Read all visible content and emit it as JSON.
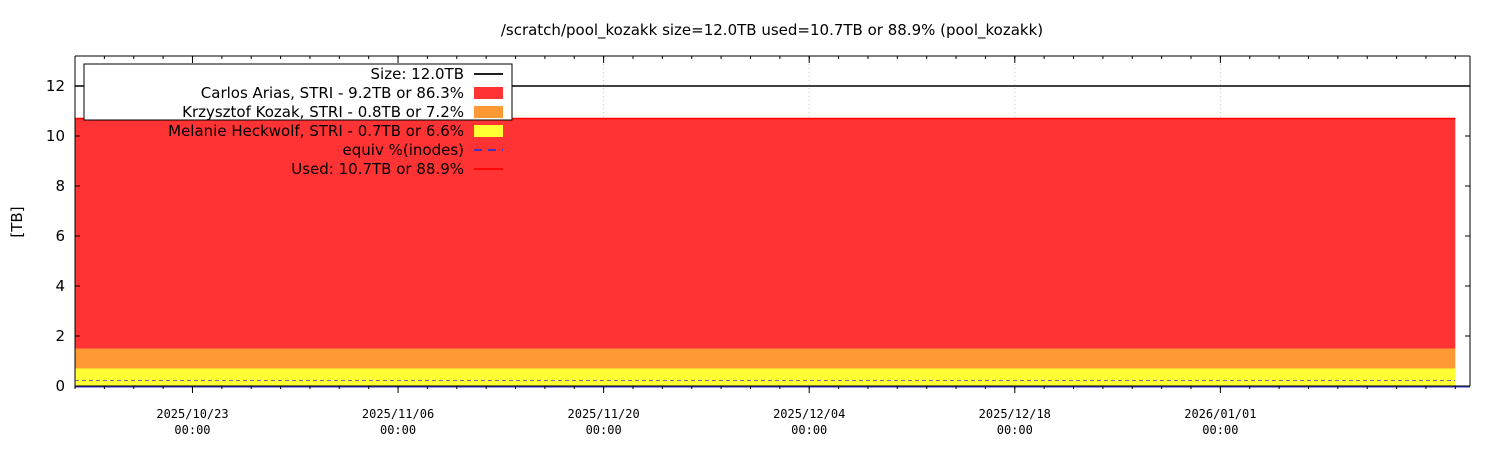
{
  "chart_data": {
    "type": "area",
    "title": "/scratch/pool_kozakk size=12.0TB used=10.7TB or 88.9% (pool_kozakk)",
    "ylabel": "[TB]",
    "xlabel": "",
    "ylim": [
      0,
      13.2
    ],
    "yticks": [
      "0",
      "2",
      "4",
      "6",
      "8",
      "10",
      "12"
    ],
    "x_range": [
      "2025-10-15",
      "2026-01-18"
    ],
    "data_end": "2026-01-17",
    "x_ticks": [
      {
        "date": "2025-10-23",
        "label1": "2025/10/23",
        "label2": "00:00"
      },
      {
        "date": "2025-11-06",
        "label1": "2025/11/06",
        "label2": "00:00"
      },
      {
        "date": "2025-11-20",
        "label1": "2025/11/20",
        "label2": "00:00"
      },
      {
        "date": "2025-12-04",
        "label1": "2025/12/04",
        "label2": "00:00"
      },
      {
        "date": "2025-12-18",
        "label1": "2025/12/18",
        "label2": "00:00"
      },
      {
        "date": "2026-01-01",
        "label1": "2026/01/01",
        "label2": "00:00"
      }
    ],
    "grid": true,
    "legend_position": "top-left",
    "size_line": {
      "name": "Size: 12.0TB",
      "value": 12.0,
      "color": "#000000"
    },
    "stacked_series": [
      {
        "name": "Melanie Heckwolf, STRI - 0.7TB or 6.6%",
        "value": 0.7,
        "color": "#ffff33"
      },
      {
        "name": "Krzysztof Kozak, STRI - 0.8TB or 7.2%",
        "value": 0.8,
        "color": "#ff9933"
      },
      {
        "name": "Carlos Arias, STRI - 9.2TB or 86.3%",
        "value": 9.2,
        "color": "#ff3333"
      }
    ],
    "inodes_line": {
      "name": "equiv %(inodes)",
      "value": 0.22,
      "color": "#3333cc"
    },
    "used_line": {
      "name": "Used: 10.7TB or 88.9%",
      "value": 10.7,
      "color": "#ff0000"
    },
    "legend_order": [
      "Size: 12.0TB",
      "Carlos Arias, STRI - 9.2TB or 86.3%",
      "Krzysztof Kozak, STRI - 0.8TB or 7.2%",
      "Melanie Heckwolf, STRI - 0.7TB or 6.6%",
      "equiv %(inodes)",
      "Used: 10.7TB or 88.9%"
    ]
  }
}
